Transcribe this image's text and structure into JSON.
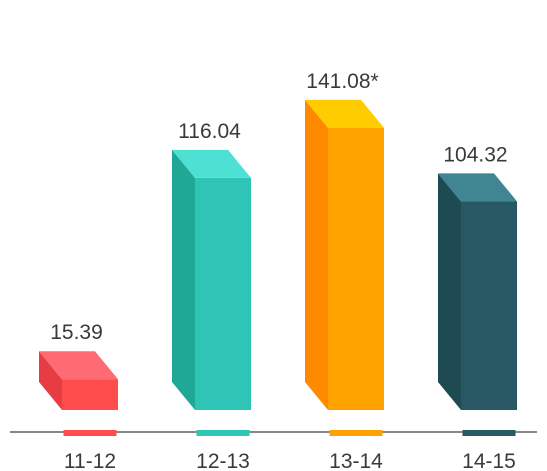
{
  "chart_data": {
    "type": "bar",
    "categories": [
      "11-12",
      "12-13",
      "13-14",
      "14-15"
    ],
    "values": [
      15.39,
      116.04,
      141.08,
      104.32
    ],
    "data_labels": [
      "15.39",
      "116.04",
      "141.08*",
      "104.32"
    ],
    "colors": [
      {
        "front": "#ff4d4d",
        "side": "#e83c44",
        "top": "#ff6b72",
        "marker": "#ff4d4d"
      },
      {
        "front": "#2ec4b6",
        "side": "#1fa896",
        "top": "#4fe0d4",
        "marker": "#2ec4b6"
      },
      {
        "front": "#ffa200",
        "side": "#ff8a00",
        "top": "#ffcc00",
        "marker": "#ffa200"
      },
      {
        "front": "#285863",
        "side": "#1e4a52",
        "top": "#3f8592",
        "marker": "#285863"
      }
    ],
    "baseline_color": "#888888",
    "title": "",
    "xlabel": "",
    "ylabel": "",
    "ylim": [
      0,
      150
    ],
    "grid": false,
    "legend": "none"
  }
}
